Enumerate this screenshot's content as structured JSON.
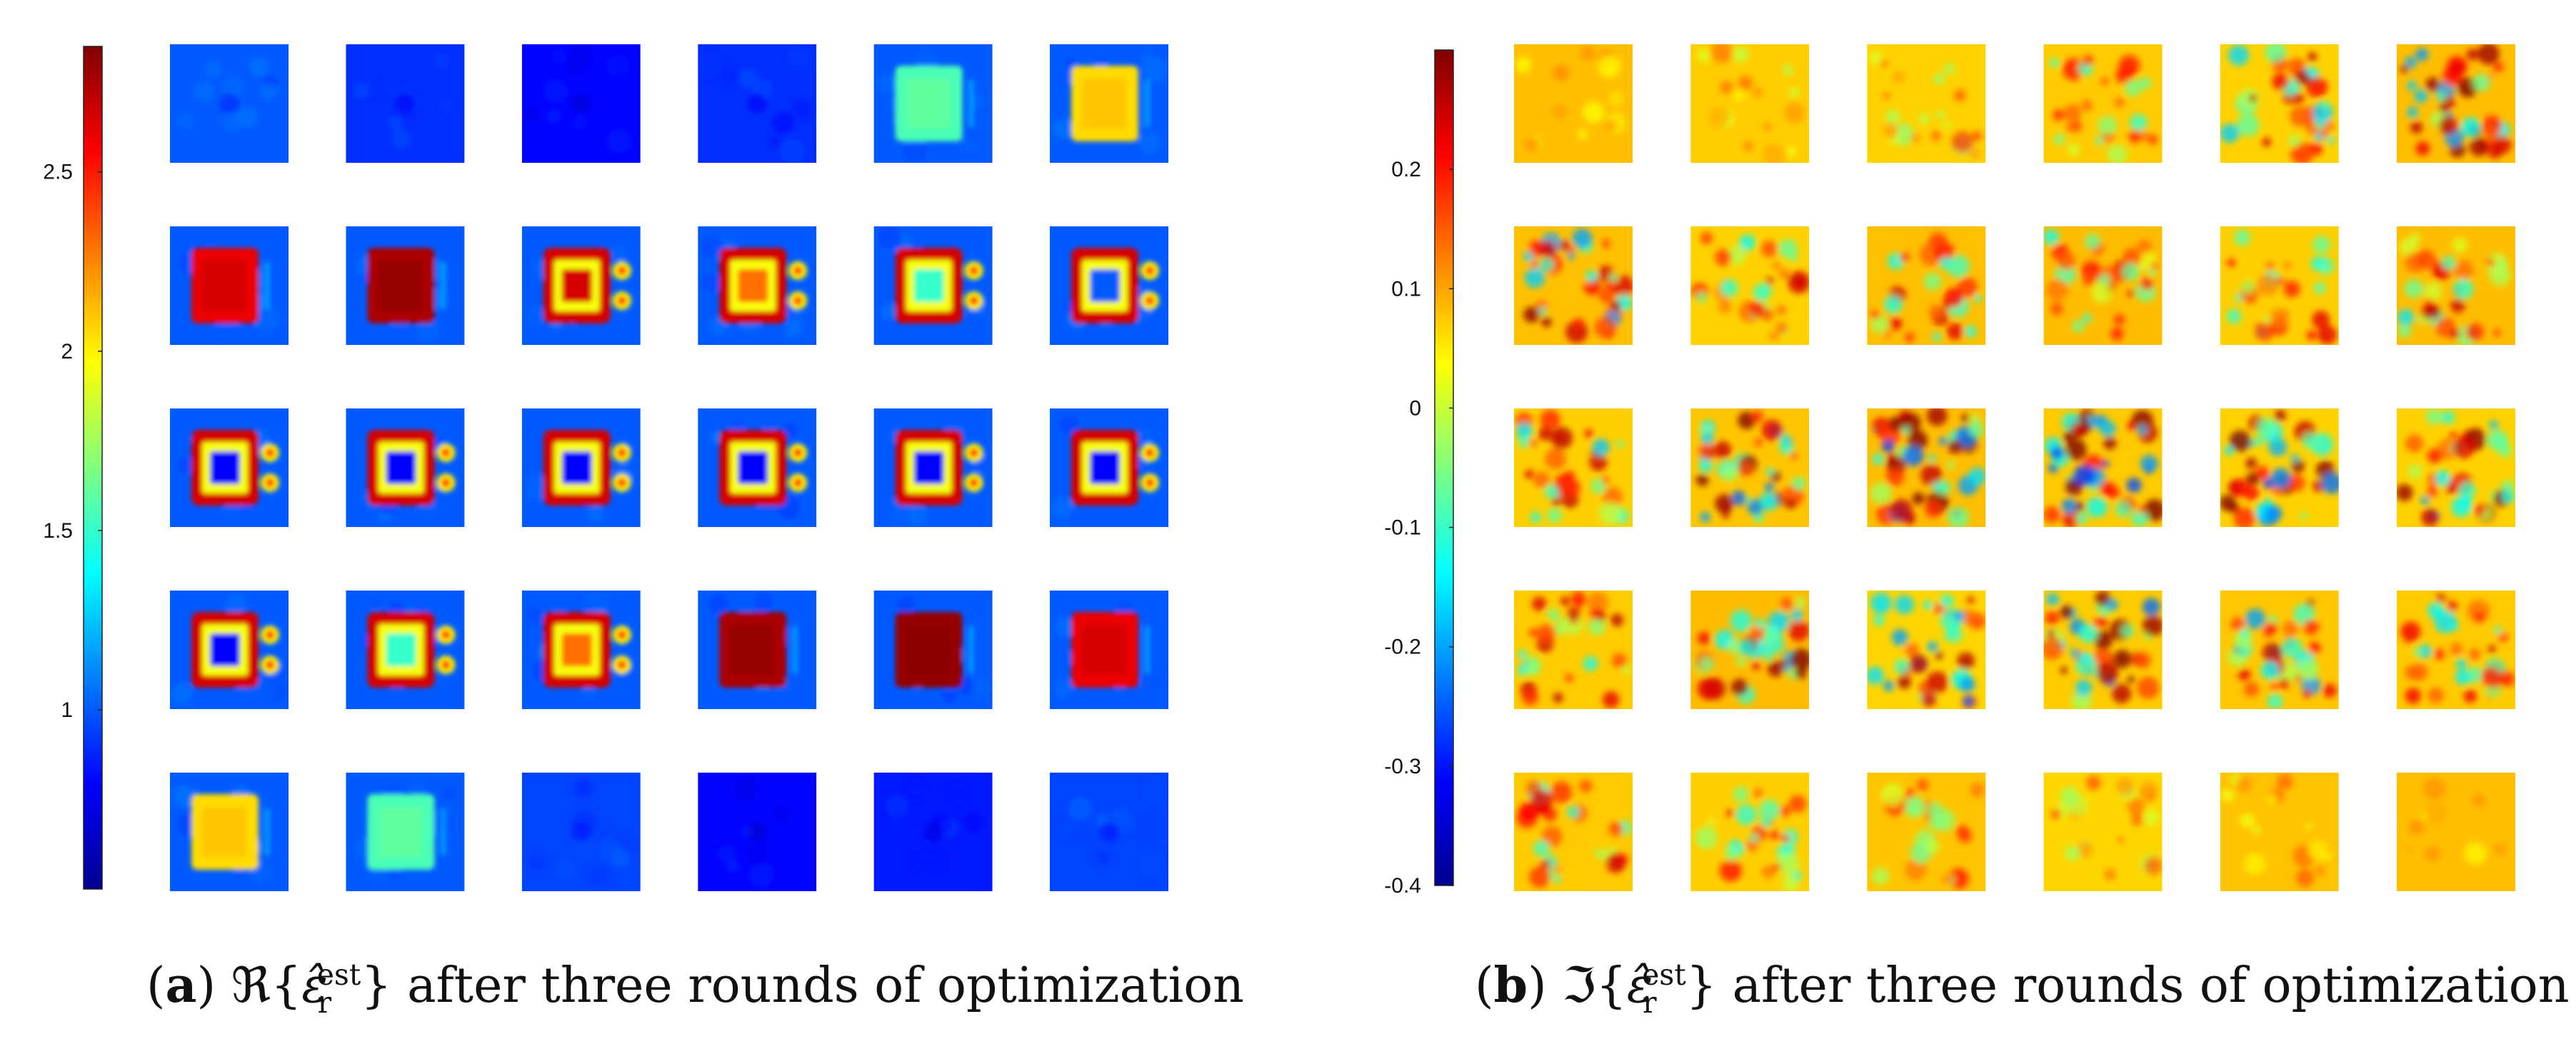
{
  "chart_data": [
    {
      "type": "heatmap",
      "panel_label": "a",
      "caption_text": "ℜ{ε̂rest} after three rounds of optimization",
      "caption_parts": {
        "prefix": "ℜ{",
        "symbol": "ε̂",
        "sub": "r",
        "sup": "est",
        "suffix": "} after three rounds of optimization"
      },
      "colorbar": {
        "ticks": [
          "2.5",
          "2",
          "1.5",
          "1"
        ],
        "tick_values": [
          2.5,
          2.0,
          1.5,
          1.0
        ],
        "range": [
          0.5,
          2.85
        ]
      },
      "grid": {
        "rows": 5,
        "cols": 6
      },
      "tiles": [
        {
          "pattern": "bg",
          "level": 1.0
        },
        {
          "pattern": "bg",
          "level": 0.9
        },
        {
          "pattern": "bg",
          "level": 0.8
        },
        {
          "pattern": "bg",
          "level": 0.9
        },
        {
          "pattern": "rect",
          "level": 1.55
        },
        {
          "pattern": "rect",
          "level": 2.05
        },
        {
          "pattern": "rect",
          "level": 2.6
        },
        {
          "pattern": "rect",
          "level": 2.75
        },
        {
          "pattern": "ring-dots",
          "level": 2.65
        },
        {
          "pattern": "ring-dots",
          "level": 2.3
        },
        {
          "pattern": "ring-dots",
          "level": 1.5
        },
        {
          "pattern": "ring-dots",
          "level": 1.0
        },
        {
          "pattern": "ring-dots",
          "level": 0.8
        },
        {
          "pattern": "ring-dots",
          "level": 0.8
        },
        {
          "pattern": "ring-dots",
          "level": 0.8
        },
        {
          "pattern": "ring-dots",
          "level": 0.8
        },
        {
          "pattern": "ring-dots",
          "level": 0.8
        },
        {
          "pattern": "ring-dots",
          "level": 0.8
        },
        {
          "pattern": "ring-dots",
          "level": 0.8
        },
        {
          "pattern": "ring-dots",
          "level": 1.5
        },
        {
          "pattern": "ring-dots",
          "level": 2.3
        },
        {
          "pattern": "rect",
          "level": 2.75
        },
        {
          "pattern": "rect",
          "level": 2.8
        },
        {
          "pattern": "rect",
          "level": 2.6
        },
        {
          "pattern": "rect",
          "level": 2.05
        },
        {
          "pattern": "rect",
          "level": 1.55
        },
        {
          "pattern": "bg",
          "level": 0.95
        },
        {
          "pattern": "bg",
          "level": 0.8
        },
        {
          "pattern": "bg",
          "level": 0.85
        },
        {
          "pattern": "bg",
          "level": 0.95
        }
      ]
    },
    {
      "type": "heatmap",
      "panel_label": "b",
      "caption_text": "ℑ{ε̂rest} after three rounds of optimization",
      "caption_parts": {
        "prefix": "ℑ{",
        "symbol": "ε̂",
        "sub": "r",
        "sup": "est",
        "suffix": "} after three rounds of optimization"
      },
      "colorbar": {
        "ticks": [
          "0.2",
          "0.1",
          "0",
          "-0.1",
          "-0.2",
          "-0.3",
          "-0.4"
        ],
        "tick_values": [
          0.2,
          0.1,
          0.0,
          -0.1,
          -0.2,
          -0.3,
          -0.4
        ],
        "range": [
          -0.4,
          0.3
        ]
      },
      "grid": {
        "rows": 5,
        "cols": 6
      },
      "tiles": [
        {
          "noise": 0.15
        },
        {
          "noise": 0.25
        },
        {
          "noise": 0.35
        },
        {
          "noise": 0.5
        },
        {
          "noise": 0.7
        },
        {
          "noise": 0.85
        },
        {
          "noise": 0.8
        },
        {
          "noise": 0.65
        },
        {
          "noise": 0.6
        },
        {
          "noise": 0.6
        },
        {
          "noise": 0.6
        },
        {
          "noise": 0.65
        },
        {
          "noise": 0.75
        },
        {
          "noise": 0.95
        },
        {
          "noise": 1.0
        },
        {
          "noise": 1.0
        },
        {
          "noise": 0.95
        },
        {
          "noise": 0.8
        },
        {
          "noise": 0.7
        },
        {
          "noise": 0.8
        },
        {
          "noise": 0.85
        },
        {
          "noise": 0.9
        },
        {
          "noise": 0.8
        },
        {
          "noise": 0.7
        },
        {
          "noise": 0.6
        },
        {
          "noise": 0.55
        },
        {
          "noise": 0.45
        },
        {
          "noise": 0.35
        },
        {
          "noise": 0.25
        },
        {
          "noise": 0.12
        }
      ]
    }
  ]
}
